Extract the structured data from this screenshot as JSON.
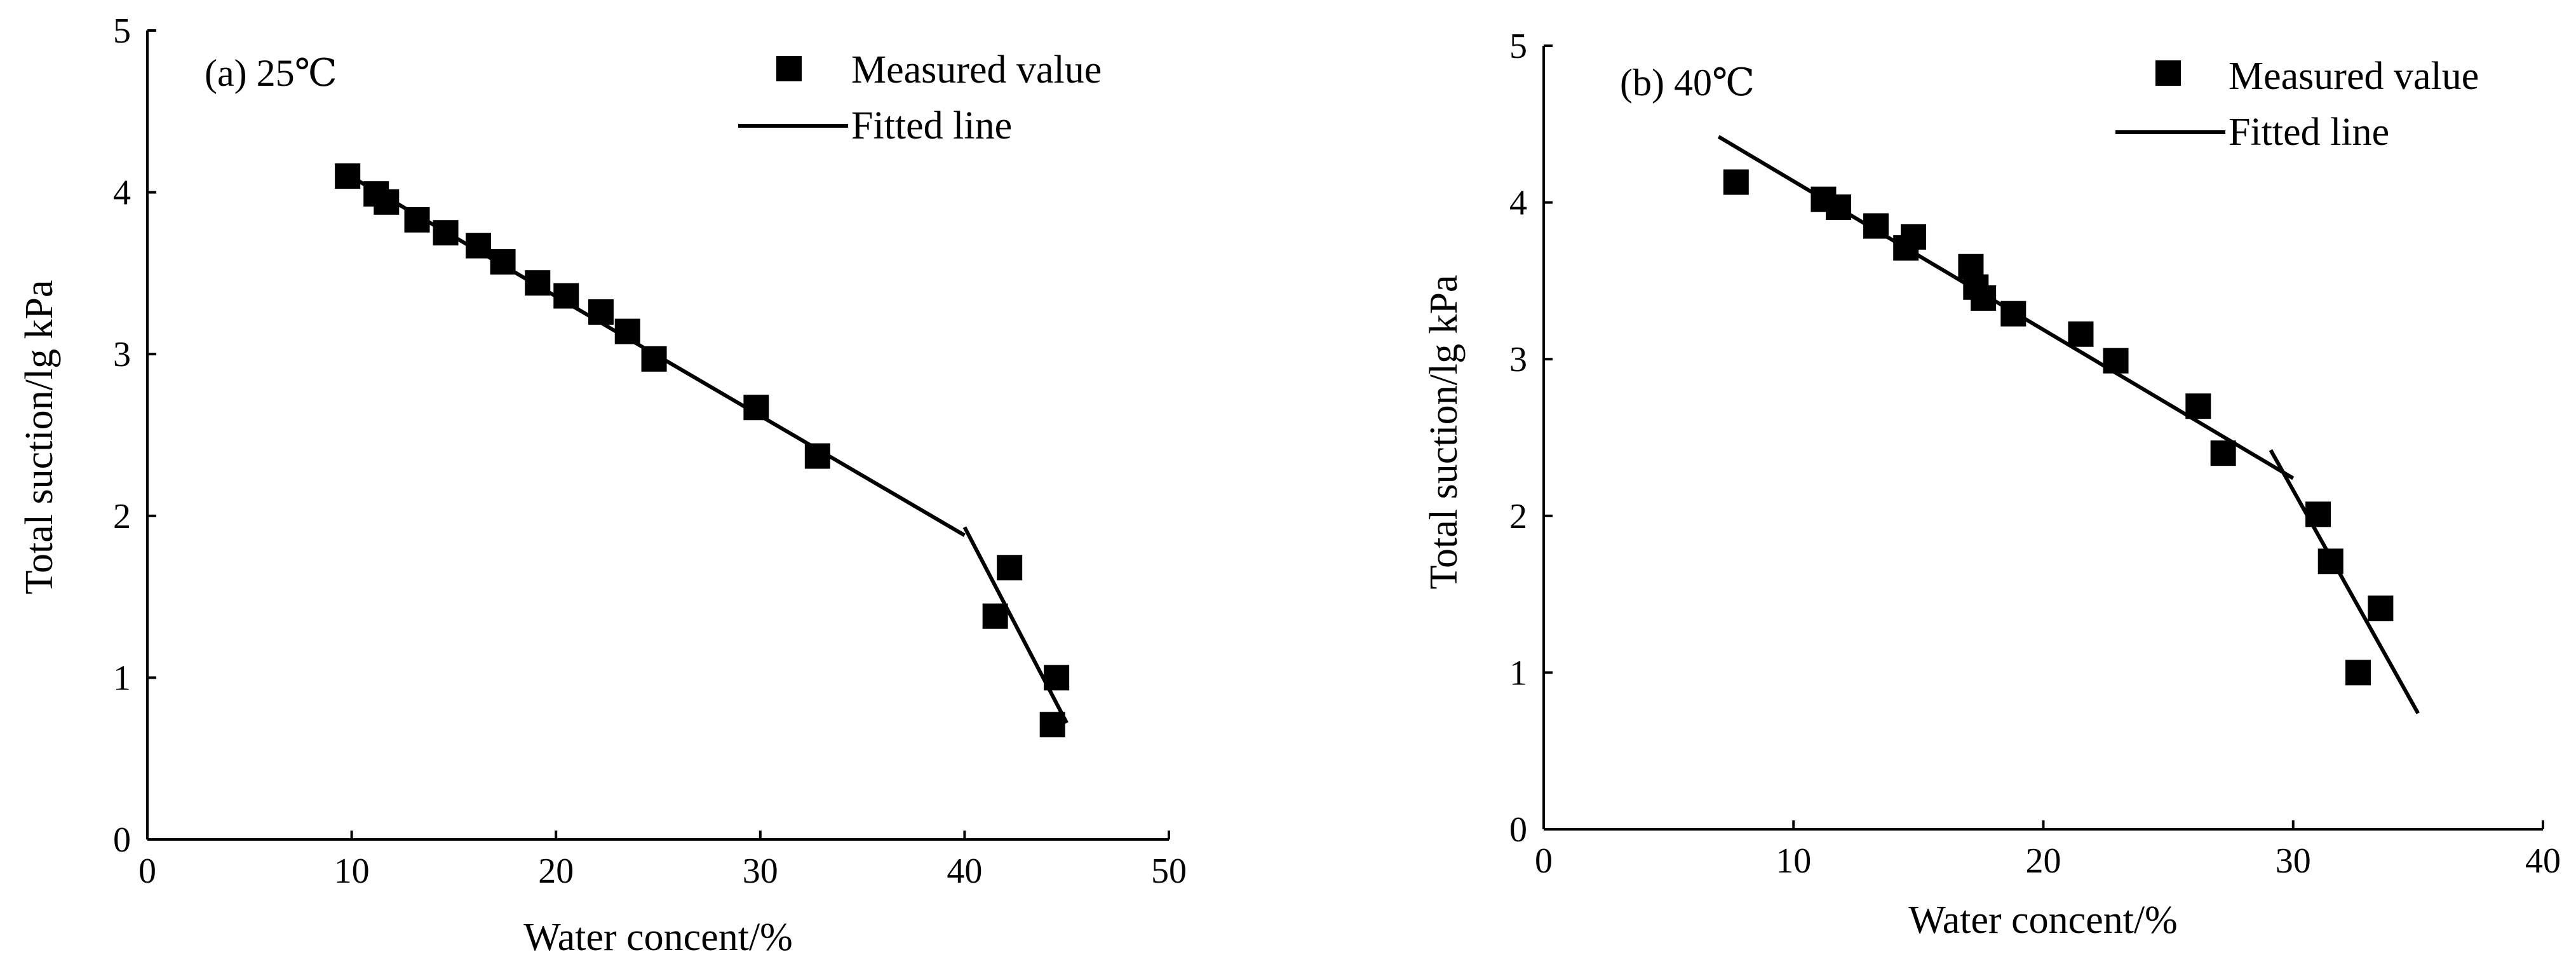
{
  "chart_data": [
    {
      "type": "scatter",
      "panel_label": "(a) 25℃",
      "xlabel": "Water concent/%",
      "ylabel": "Total suction/lg kPa",
      "xlim": [
        0,
        50
      ],
      "ylim": [
        0,
        5
      ],
      "xticks": [
        0,
        10,
        20,
        30,
        40,
        50
      ],
      "yticks": [
        0,
        1,
        2,
        3,
        4,
        5
      ],
      "legend": {
        "position": "top-right",
        "entries": [
          "Measured value",
          "Fitted line"
        ]
      },
      "series": [
        {
          "name": "Measured value",
          "kind": "markers",
          "points": [
            [
              9.8,
              4.1
            ],
            [
              11.2,
              3.99
            ],
            [
              11.7,
              3.94
            ],
            [
              13.2,
              3.83
            ],
            [
              14.6,
              3.75
            ],
            [
              16.2,
              3.67
            ],
            [
              17.4,
              3.57
            ],
            [
              19.1,
              3.44
            ],
            [
              20.5,
              3.36
            ],
            [
              22.2,
              3.26
            ],
            [
              23.5,
              3.14
            ],
            [
              24.8,
              2.97
            ],
            [
              29.8,
              2.67
            ],
            [
              32.8,
              2.37
            ],
            [
              41.5,
              1.38
            ],
            [
              42.2,
              1.68
            ],
            [
              44.5,
              1.0
            ],
            [
              44.3,
              0.71
            ]
          ]
        },
        {
          "name": "Fitted line",
          "kind": "line",
          "segments": [
            [
              [
                10.2,
                4.08
              ],
              [
                40.0,
                1.88
              ]
            ],
            [
              [
                40.0,
                1.93
              ],
              [
                45.0,
                0.72
              ]
            ]
          ]
        }
      ]
    },
    {
      "type": "scatter",
      "panel_label": "(b) 40℃",
      "xlabel": "Water concent/%",
      "ylabel": "Total suction/lg kPa",
      "xlim": [
        0,
        40
      ],
      "ylim": [
        0,
        5
      ],
      "xticks": [
        0,
        10,
        20,
        30,
        40
      ],
      "yticks": [
        0,
        1,
        2,
        3,
        4,
        5
      ],
      "legend": {
        "position": "top-right",
        "entries": [
          "Measured value",
          "Fitted line"
        ]
      },
      "series": [
        {
          "name": "Measured value",
          "kind": "markers",
          "points": [
            [
              7.7,
              4.13
            ],
            [
              11.2,
              4.02
            ],
            [
              11.8,
              3.97
            ],
            [
              13.3,
              3.85
            ],
            [
              14.5,
              3.71
            ],
            [
              14.8,
              3.78
            ],
            [
              17.1,
              3.59
            ],
            [
              17.3,
              3.46
            ],
            [
              17.6,
              3.39
            ],
            [
              18.8,
              3.29
            ],
            [
              21.5,
              3.16
            ],
            [
              22.9,
              2.99
            ],
            [
              26.2,
              2.7
            ],
            [
              27.2,
              2.4
            ],
            [
              31.0,
              2.01
            ],
            [
              31.5,
              1.71
            ],
            [
              33.5,
              1.41
            ],
            [
              32.6,
              1.0
            ]
          ]
        },
        {
          "name": "Fitted line",
          "kind": "line",
          "segments": [
            [
              [
                7.0,
                4.42
              ],
              [
                30.0,
                2.24
              ]
            ],
            [
              [
                29.1,
                2.42
              ],
              [
                35.0,
                0.74
              ]
            ]
          ]
        }
      ]
    }
  ]
}
